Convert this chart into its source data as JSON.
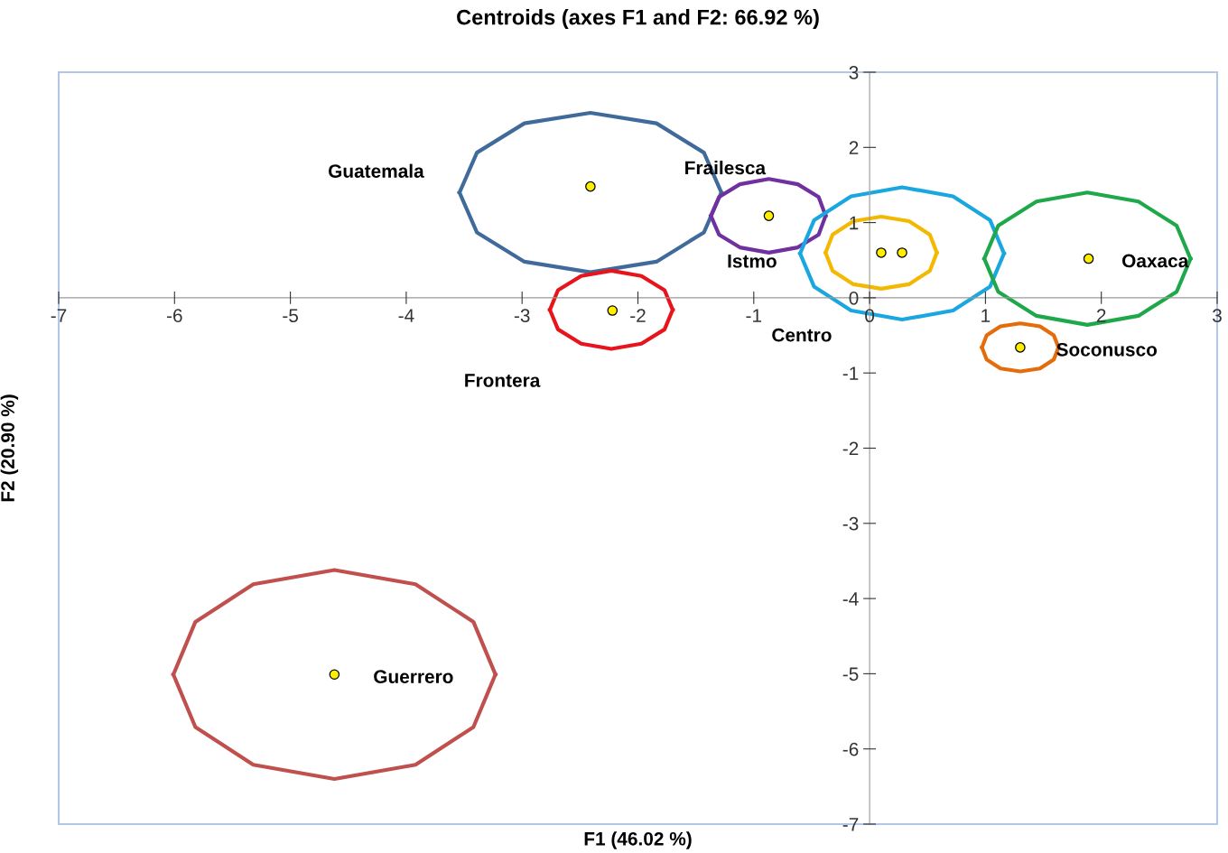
{
  "chart_data": {
    "type": "scatter",
    "title": "Centroids (axes F1 and F2: 66.92 %)",
    "xlabel": "F1 (46.02 %)",
    "ylabel": "F2 (20.90 %)",
    "xlim": [
      -7,
      3
    ],
    "xticks": [
      -7,
      -6,
      -5,
      -4,
      -3,
      -2,
      -1,
      0,
      1,
      2,
      3
    ],
    "ylim": [
      -7,
      3
    ],
    "yticks": [
      -7,
      -6,
      -5,
      -4,
      -3,
      -2,
      -1,
      0,
      1,
      2,
      3
    ],
    "grid": false,
    "legend": false,
    "marker": "circle",
    "series": [
      {
        "color": "#ffee00",
        "x": [
          -2.41,
          -0.87,
          0.1,
          0.28,
          1.89,
          -2.22,
          1.3,
          -4.62
        ],
        "values": [
          1.48,
          1.09,
          0.6,
          0.6,
          0.52,
          -0.17,
          -0.66,
          -5.01
        ]
      },
      {
        "type": "line",
        "marker": "none",
        "color": "#3f6a9a",
        "x": [
          -3.54,
          -3.39,
          -2.98,
          -2.41,
          -1.84,
          -1.43,
          -1.28
        ],
        "values": [
          1.4,
          1.93,
          2.32,
          2.46,
          2.32,
          1.93,
          1.4
        ]
      },
      {
        "type": "line",
        "marker": "none",
        "color": "#3f6a9a",
        "x": [
          -3.54,
          -3.39,
          -2.98,
          -2.41,
          -1.84,
          -1.43,
          -1.28
        ],
        "values": [
          1.4,
          0.87,
          0.48,
          0.34,
          0.48,
          0.87,
          1.4
        ]
      },
      {
        "type": "line",
        "marker": "none",
        "color": "#7030a0",
        "x": [
          -1.37,
          -1.3,
          -1.12,
          -0.87,
          -0.62,
          -0.44,
          -0.38
        ],
        "values": [
          1.09,
          1.34,
          1.51,
          1.58,
          1.51,
          1.34,
          1.09
        ]
      },
      {
        "type": "line",
        "marker": "none",
        "color": "#7030a0",
        "x": [
          -1.37,
          -1.3,
          -1.12,
          -0.87,
          -0.62,
          -0.44,
          -0.38
        ],
        "values": [
          1.09,
          0.84,
          0.67,
          0.6,
          0.67,
          0.84,
          1.09
        ]
      },
      {
        "type": "line",
        "marker": "none",
        "color": "#1aa7e0",
        "x": [
          -0.6,
          -0.48,
          -0.16,
          0.28,
          0.72,
          1.04,
          1.16
        ],
        "values": [
          0.59,
          1.03,
          1.35,
          1.47,
          1.35,
          1.03,
          0.59
        ]
      },
      {
        "type": "line",
        "marker": "none",
        "color": "#1aa7e0",
        "x": [
          -0.6,
          -0.48,
          -0.16,
          0.28,
          0.72,
          1.04,
          1.16
        ],
        "values": [
          0.59,
          0.15,
          -0.17,
          -0.29,
          -0.17,
          0.15,
          0.59
        ]
      },
      {
        "type": "line",
        "marker": "none",
        "color": "#f5b800",
        "x": [
          -0.38,
          -0.32,
          -0.14,
          0.1,
          0.34,
          0.52,
          0.58
        ],
        "values": [
          0.6,
          0.84,
          1.02,
          1.08,
          1.02,
          0.84,
          0.6
        ]
      },
      {
        "type": "line",
        "marker": "none",
        "color": "#f5b800",
        "x": [
          -0.38,
          -0.32,
          -0.14,
          0.1,
          0.34,
          0.52,
          0.58
        ],
        "values": [
          0.6,
          0.36,
          0.18,
          0.12,
          0.18,
          0.36,
          0.6
        ]
      },
      {
        "type": "line",
        "marker": "none",
        "color": "#1ea84a",
        "x": [
          0.99,
          1.11,
          1.44,
          1.88,
          2.32,
          2.65,
          2.77
        ],
        "values": [
          0.52,
          0.96,
          1.28,
          1.4,
          1.28,
          0.96,
          0.52
        ]
      },
      {
        "type": "line",
        "marker": "none",
        "color": "#1ea84a",
        "x": [
          0.99,
          1.11,
          1.44,
          1.88,
          2.32,
          2.65,
          2.77
        ],
        "values": [
          0.52,
          0.08,
          -0.24,
          -0.36,
          -0.24,
          0.08,
          0.52
        ]
      },
      {
        "type": "line",
        "marker": "none",
        "color": "#e8141c",
        "x": [
          -2.76,
          -2.69,
          -2.49,
          -2.23,
          -1.97,
          -1.77,
          -1.7
        ],
        "values": [
          -0.16,
          0.1,
          0.29,
          0.36,
          0.29,
          0.1,
          -0.16
        ]
      },
      {
        "type": "line",
        "marker": "none",
        "color": "#e8141c",
        "x": [
          -2.76,
          -2.69,
          -2.49,
          -2.23,
          -1.97,
          -1.77,
          -1.7
        ],
        "values": [
          -0.16,
          -0.42,
          -0.61,
          -0.68,
          -0.61,
          -0.42,
          -0.16
        ]
      },
      {
        "type": "line",
        "marker": "none",
        "color": "#e46c0a",
        "x": [
          0.97,
          1.01,
          1.13,
          1.3,
          1.47,
          1.59,
          1.63
        ],
        "values": [
          -0.66,
          -0.5,
          -0.38,
          -0.34,
          -0.38,
          -0.5,
          -0.66
        ]
      },
      {
        "type": "line",
        "marker": "none",
        "color": "#e46c0a",
        "x": [
          0.97,
          1.01,
          1.13,
          1.3,
          1.47,
          1.59,
          1.63
        ],
        "values": [
          -0.66,
          -0.82,
          -0.94,
          -0.98,
          -0.94,
          -0.82,
          -0.66
        ]
      },
      {
        "type": "line",
        "marker": "none",
        "color": "#c0504d",
        "x": [
          -6.01,
          -5.82,
          -5.32,
          -4.62,
          -3.92,
          -3.42,
          -3.23
        ],
        "values": [
          -5.01,
          -4.31,
          -3.81,
          -3.62,
          -3.81,
          -4.31,
          -5.01
        ]
      },
      {
        "type": "line",
        "marker": "none",
        "color": "#c0504d",
        "x": [
          -6.01,
          -5.82,
          -5.32,
          -4.62,
          -3.92,
          -3.42,
          -3.23
        ],
        "values": [
          -5.01,
          -5.71,
          -6.21,
          -6.4,
          -6.21,
          -5.71,
          -5.01
        ]
      }
    ],
    "annotations": [
      "Guatemala",
      "Frailesca",
      "Istmo",
      "Centro",
      "Oaxaca",
      "Frontera",
      "Soconusco",
      "Guerrero"
    ]
  }
}
